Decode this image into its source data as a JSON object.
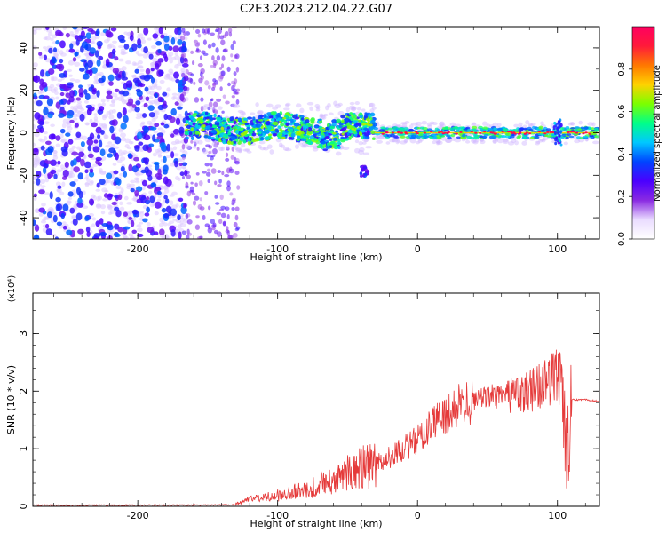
{
  "figure": {
    "title": "C2E3.2023.212.04.22.G07"
  },
  "colors": {
    "snr_line": "#e53a3a",
    "colormap": [
      "#ffffff",
      "#eadcff",
      "#8a2be2",
      "#4a00ff",
      "#0044ff",
      "#00c8ff",
      "#00ff88",
      "#7cff00",
      "#ffd200",
      "#ff7800",
      "#ff1a3a",
      "#ff0060"
    ]
  },
  "chart_data": [
    {
      "type": "heatmap",
      "xlabel": "Height of straight line (km)",
      "ylabel": "Frequency (Hz)",
      "xlim": [
        -275,
        130
      ],
      "ylim": [
        -50,
        50
      ],
      "xticks": [
        -200,
        -100,
        0,
        100
      ],
      "yticks": [
        -40,
        -20,
        0,
        20,
        40
      ],
      "grid": false,
      "colorbar": {
        "label": "Normalized spectral amplitude",
        "range": [
          0.0,
          1.0
        ],
        "ticks": [
          "0.0",
          "0.2",
          "0.4",
          "0.6",
          "0.8"
        ],
        "tick_values": [
          0.0,
          0.2,
          0.4,
          0.6,
          0.8
        ]
      },
      "regions": [
        {
          "x_range": [
            -275,
            -165
          ],
          "freq_range": [
            -50,
            50
          ],
          "level": "noise (low-mid amplitude, scattered)"
        },
        {
          "x_range": [
            -165,
            -130
          ],
          "freq_range": [
            -50,
            50
          ],
          "level": "sparse noise"
        },
        {
          "x_range": [
            -165,
            -30
          ],
          "freq_center": 2,
          "freq_halfwidth": 8,
          "level": "signal 0.3-0.6"
        },
        {
          "x_range": [
            -30,
            130
          ],
          "freq_center": 0,
          "freq_halfwidth": 3,
          "level": "signal 0.6-1.0"
        },
        {
          "x_range": [
            -42,
            -36
          ],
          "freq_center": -18,
          "freq_halfwidth": 3,
          "level": "isolated blob"
        }
      ]
    },
    {
      "type": "line",
      "xlabel": "Height of straight line (km)",
      "ylabel": "SNR (10 * v/v)",
      "y_multiplier": "(x10⁴)",
      "xlim": [
        -275,
        130
      ],
      "ylim": [
        0,
        3.7
      ],
      "xticks": [
        -200,
        -100,
        0,
        100
      ],
      "yticks": [
        0,
        1,
        2,
        3
      ],
      "grid": false,
      "series": [
        {
          "x": [
            -275,
            -250,
            -200,
            -150,
            -130,
            -120,
            -100,
            -80,
            -70,
            -60,
            -50,
            -40,
            -30,
            -20,
            -10,
            0,
            10,
            20,
            30,
            40,
            50,
            60,
            70,
            80,
            90,
            95,
            100,
            103,
            105,
            107,
            110,
            120,
            130
          ],
          "y": [
            0.03,
            0.02,
            0.03,
            0.03,
            0.04,
            0.12,
            0.2,
            0.3,
            0.4,
            0.45,
            0.6,
            0.7,
            0.75,
            0.85,
            1.0,
            1.15,
            1.4,
            1.6,
            1.75,
            1.85,
            1.88,
            1.9,
            1.92,
            2.0,
            2.1,
            2.2,
            2.3,
            2.5,
            1.5,
            0.8,
            1.85,
            1.85,
            1.82
          ]
        }
      ]
    }
  ]
}
